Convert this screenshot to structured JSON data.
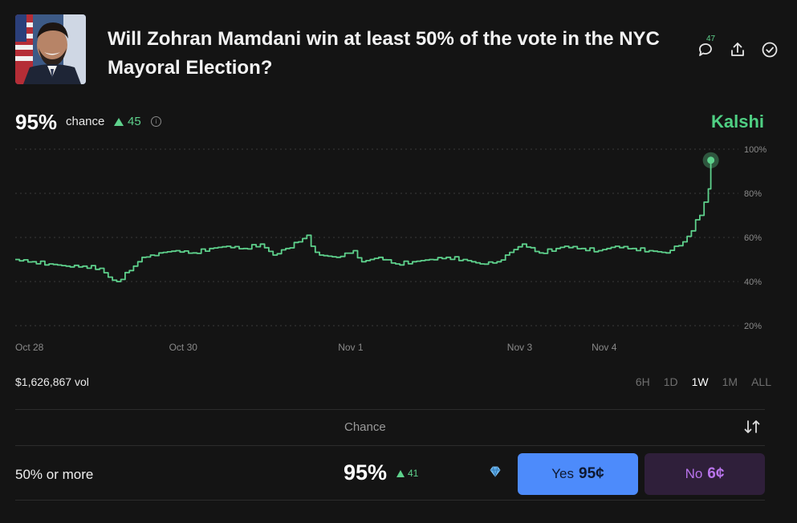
{
  "header": {
    "title": "Will Zohran Mamdani win at least 50% of the vote in the NYC Mayoral Election?",
    "comment_count": "47"
  },
  "summary": {
    "chance": "95%",
    "chance_label": "chance",
    "delta": "45",
    "brand": "Kalshi"
  },
  "chart_data": {
    "type": "line",
    "title": "",
    "y_ticks": [
      "100%",
      "80%",
      "60%",
      "40%",
      "20%"
    ],
    "ylim": [
      20,
      100
    ],
    "x_tick_labels": [
      "Oct 28",
      "Oct 30",
      "Nov 1",
      "Nov 3",
      "Nov 4"
    ],
    "x_range_days": [
      0,
      8.3
    ],
    "grid": true,
    "series": [
      {
        "color": "#5ed18c",
        "x": [
          0,
          0.2,
          0.4,
          0.6,
          0.8,
          1.0,
          1.1,
          1.2,
          1.35,
          1.5,
          1.6,
          1.7,
          1.9,
          2.1,
          2.3,
          2.5,
          2.7,
          2.9,
          3.05,
          3.2,
          3.35,
          3.45,
          3.5,
          3.6,
          3.8,
          4.0,
          4.1,
          4.3,
          4.5,
          4.7,
          4.9,
          5.1,
          5.3,
          5.5,
          5.7,
          5.8,
          6.0,
          6.2,
          6.4,
          6.5,
          6.7,
          6.9,
          7.1,
          7.3,
          7.5,
          7.7,
          7.8,
          7.9,
          8.0,
          8.05,
          8.1,
          8.15,
          8.2,
          8.23
        ],
        "y": [
          50,
          49,
          48,
          47,
          47,
          46,
          42,
          40,
          45,
          51,
          52,
          53,
          54,
          53,
          55,
          56,
          55,
          57,
          52,
          55,
          58,
          61,
          56,
          52,
          51,
          54,
          49,
          51,
          48,
          49,
          50,
          51,
          50,
          48,
          49,
          52,
          57,
          53,
          55,
          56,
          55,
          54,
          56,
          55,
          54,
          53,
          56,
          58,
          63,
          68,
          70,
          76,
          82,
          95
        ]
      }
    ],
    "last_point": {
      "x": 8.23,
      "y": 95
    }
  },
  "footer_bar": {
    "volume": "$1,626,867 vol",
    "ranges": [
      "6H",
      "1D",
      "1W",
      "1M",
      "ALL"
    ],
    "active_range": "1W"
  },
  "table": {
    "column_header": "Chance",
    "rows": [
      {
        "label": "50% or more",
        "chance": "95%",
        "delta": "41",
        "yes_label": "Yes",
        "yes_price": "95¢",
        "no_label": "No",
        "no_price": "6¢"
      }
    ]
  }
}
